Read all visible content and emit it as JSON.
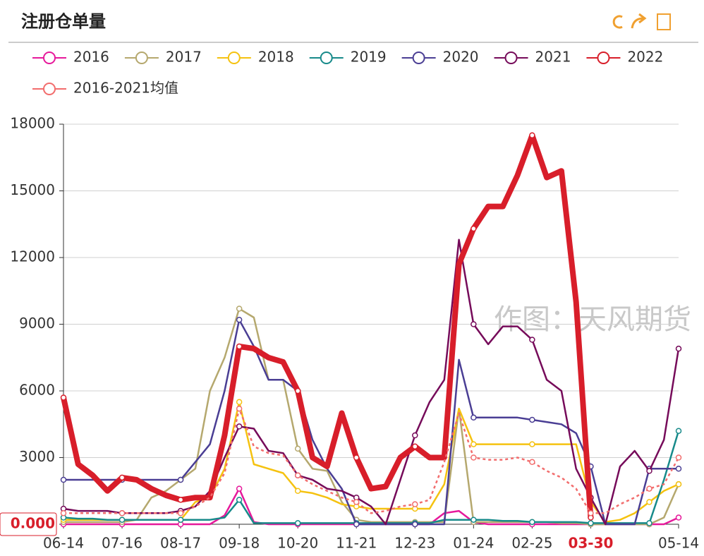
{
  "chart_data": {
    "type": "line",
    "title": "注册仓单量",
    "watermark": "作图：天风期货",
    "categories": [
      "06-14",
      null,
      null,
      null,
      "07-16",
      null,
      null,
      null,
      "08-17",
      null,
      null,
      null,
      "09-18",
      null,
      null,
      null,
      "10-20",
      null,
      null,
      null,
      "11-21",
      null,
      null,
      null,
      "12-23",
      null,
      null,
      null,
      "01-24",
      null,
      null,
      null,
      "02-25",
      null,
      null,
      null,
      "03-30",
      null,
      null,
      null,
      null,
      null,
      "05-14"
    ],
    "ylim": [
      0,
      18000
    ],
    "yticks": [
      {
        "value": 0,
        "label": "0.000"
      },
      3000,
      6000,
      9000,
      12000,
      15000,
      18000
    ],
    "grid": true,
    "axis_pointer": {
      "category_index": 36,
      "y": 0
    },
    "series": [
      {
        "name": "2016",
        "color": "#e6199b",
        "values": [
          0,
          0,
          0,
          0,
          0,
          0,
          0,
          0,
          0,
          0,
          0,
          400,
          1600,
          100,
          0,
          0,
          0,
          0,
          0,
          0,
          0,
          0,
          0,
          0,
          0,
          0,
          500,
          600,
          100,
          0,
          0,
          0,
          0,
          0,
          0,
          0,
          0,
          0,
          0,
          0,
          0,
          0,
          300
        ]
      },
      {
        "name": "2017",
        "color": "#b5a86e",
        "values": [
          100,
          100,
          100,
          100,
          100,
          200,
          1200,
          1500,
          2000,
          2500,
          6000,
          7500,
          9700,
          9300,
          6500,
          6500,
          3400,
          2500,
          2400,
          1000,
          200,
          100,
          100,
          100,
          100,
          100,
          100,
          5200,
          100,
          100,
          100,
          100,
          100,
          100,
          50,
          50,
          0,
          0,
          0,
          0,
          0,
          300,
          1800
        ]
      },
      {
        "name": "2018",
        "color": "#f5c210",
        "values": [
          200,
          200,
          200,
          200,
          200,
          200,
          200,
          200,
          200,
          1000,
          1200,
          2500,
          5500,
          2700,
          2500,
          2300,
          1500,
          1400,
          1200,
          900,
          800,
          700,
          700,
          700,
          700,
          700,
          1800,
          5200,
          3600,
          3600,
          3600,
          3600,
          3600,
          3600,
          3600,
          3600,
          1000,
          100,
          200,
          500,
          1000,
          1500,
          1800
        ]
      },
      {
        "name": "2019",
        "color": "#178a8a",
        "values": [
          300,
          250,
          250,
          200,
          200,
          200,
          200,
          200,
          200,
          200,
          200,
          300,
          1100,
          50,
          50,
          50,
          50,
          50,
          50,
          50,
          50,
          50,
          50,
          50,
          50,
          50,
          200,
          200,
          200,
          200,
          150,
          150,
          100,
          100,
          100,
          100,
          50,
          50,
          50,
          50,
          50,
          2000,
          4200
        ]
      },
      {
        "name": "2020",
        "color": "#4a3e94",
        "values": [
          2000,
          2000,
          2000,
          2000,
          2000,
          2000,
          2000,
          2000,
          2000,
          2800,
          3600,
          6000,
          9200,
          8000,
          6500,
          6500,
          6000,
          3800,
          2500,
          1600,
          0,
          0,
          0,
          0,
          0,
          0,
          0,
          7400,
          4800,
          4800,
          4800,
          4800,
          4700,
          4600,
          4500,
          4100,
          2600,
          0,
          0,
          0,
          2500,
          2500,
          2500
        ]
      },
      {
        "name": "2021",
        "color": "#760b5a",
        "values": [
          700,
          600,
          600,
          600,
          500,
          500,
          500,
          500,
          600,
          800,
          1500,
          3000,
          4400,
          4300,
          3300,
          3200,
          2200,
          2000,
          1600,
          1500,
          1200,
          800,
          0,
          2000,
          4000,
          5500,
          6500,
          12800,
          9000,
          8100,
          8900,
          8900,
          8300,
          6500,
          6000,
          2500,
          1200,
          0,
          2600,
          3300,
          2400,
          3800,
          7900
        ]
      },
      {
        "name": "2022",
        "color": "#d81e2a",
        "width": 8,
        "values": [
          5700,
          2700,
          2200,
          1500,
          2100,
          2000,
          1600,
          1300,
          1100,
          1200,
          1200,
          4000,
          8000,
          7900,
          7500,
          7300,
          6000,
          3000,
          2600,
          5000,
          3000,
          1600,
          1700,
          3000,
          3500,
          3000,
          3000,
          11700,
          13300,
          14300,
          14300,
          15700,
          17500,
          15600,
          15900,
          10000,
          300,
          null,
          null,
          null,
          null,
          null,
          null
        ]
      },
      {
        "name": "2016-2021均值",
        "color": "#f26d6d",
        "dashed": true,
        "values": [
          500,
          500,
          500,
          500,
          500,
          500,
          500,
          500,
          500,
          800,
          1200,
          2300,
          5200,
          3500,
          3200,
          3100,
          2200,
          1800,
          1500,
          1200,
          1000,
          500,
          600,
          800,
          900,
          1100,
          2800,
          5000,
          3000,
          2900,
          2900,
          3000,
          2800,
          2400,
          2100,
          1600,
          500,
          500,
          900,
          1200,
          1600,
          1800,
          3000
        ]
      }
    ]
  }
}
